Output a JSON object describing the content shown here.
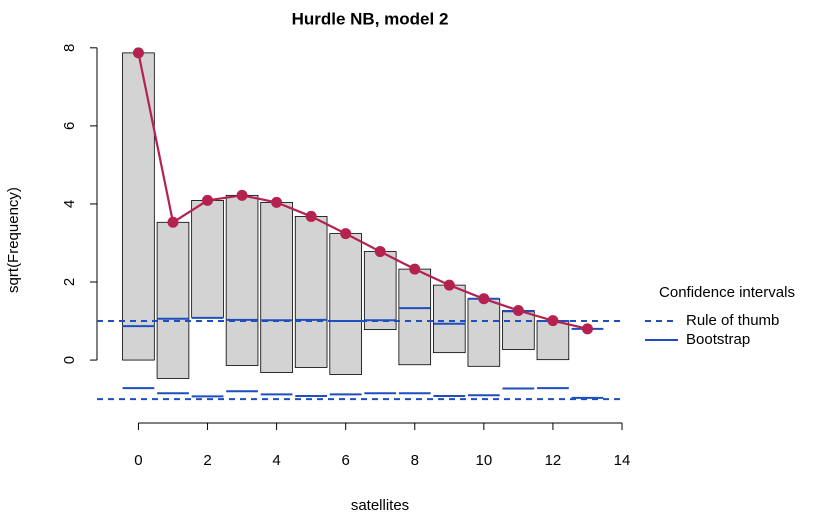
{
  "chart_data": {
    "type": "rootogram",
    "title": "Hurdle NB, model 2",
    "x_label": "satellites",
    "y_label": "sqrt(Frequency)",
    "x": [
      0,
      1,
      2,
      3,
      4,
      5,
      6,
      7,
      8,
      9,
      10,
      11,
      12,
      13
    ],
    "observed_sqrt": [
      7.87,
      4,
      3,
      4.36,
      4.36,
      3.87,
      3.61,
      2,
      2.45,
      1.73,
      1.73,
      1,
      1,
      0
    ],
    "expected_sqrt": [
      7.87,
      3.53,
      4.09,
      4.22,
      4.04,
      3.68,
      3.24,
      2.78,
      2.33,
      1.92,
      1.57,
      1.27,
      1.01,
      0.8
    ],
    "bootstrap_upper": [
      0.87,
      1.06,
      1.08,
      1.03,
      1.02,
      1.03,
      1.0,
      1.02,
      1.33,
      0.93,
      1.57,
      1.25,
      1.0,
      0.8
    ],
    "bootstrap_lower": [
      -0.72,
      -0.85,
      -0.93,
      -0.8,
      -0.88,
      -0.92,
      -0.88,
      -0.85,
      -0.85,
      -0.92,
      -0.9,
      -0.73,
      -0.72,
      -0.97
    ],
    "rule_of_thumb": [
      -1,
      1
    ],
    "bar_color": "#d3d3d3",
    "expected_color": "#b5224f",
    "ci_color": "#1f4fbf",
    "xlim": [
      -1.2,
      14
    ],
    "ylim": [
      -1.1,
      8.2
    ],
    "xticks": [
      0,
      2,
      4,
      6,
      8,
      10,
      12,
      14
    ],
    "yticks": [
      0,
      2,
      4,
      6,
      8
    ],
    "legend": {
      "title": "Confidence intervals",
      "entries": [
        "Rule of thumb",
        "Bootstrap"
      ],
      "position": "right"
    }
  }
}
